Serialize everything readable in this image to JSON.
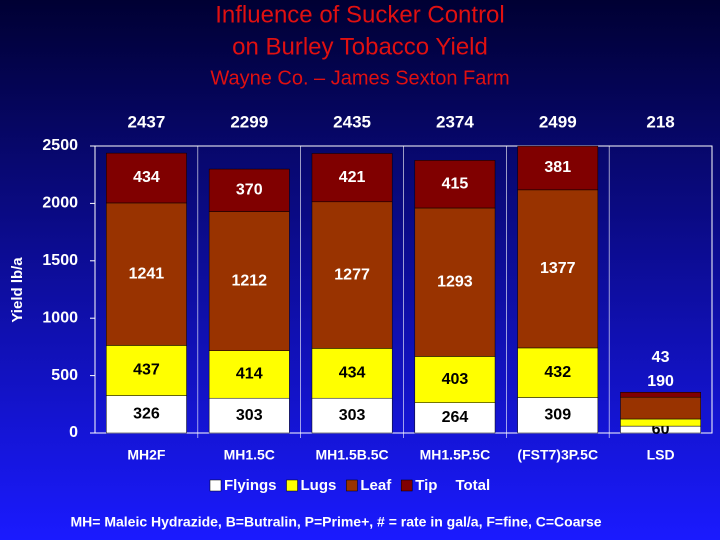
{
  "chart_data": {
    "type": "stacked-bar",
    "title": "Influence of Sucker Control",
    "title_line2": "on Burley Tobacco Yield",
    "subtitle": "Wayne Co. – James Sexton Farm",
    "y_label": "Yield lb/a",
    "footnote": "MH= Maleic Hydrazide, B=Butralin, P=Prime+, # = rate in gal/a, F=fine, C=Coarse",
    "categories": [
      "MH2F",
      "MH1.5C",
      "MH1.5B.5C",
      "MH1.5P.5C",
      "(FST7)3P.5C",
      "LSD"
    ],
    "series": [
      {
        "name": "Flyings",
        "color": "#ffffff",
        "values": [
          326,
          303,
          303,
          264,
          309,
          60
        ]
      },
      {
        "name": "Lugs",
        "color": "#ffff00",
        "values": [
          437,
          414,
          434,
          403,
          432,
          62
        ]
      },
      {
        "name": "Leaf",
        "color": "#993300",
        "values": [
          1241,
          1212,
          1277,
          1293,
          1377,
          190
        ]
      },
      {
        "name": "Tip",
        "color": "#800000",
        "values": [
          434,
          370,
          421,
          415,
          381,
          43
        ]
      }
    ],
    "totals": {
      "name": "Total",
      "values": [
        2437,
        2299,
        2435,
        2374,
        2499,
        218
      ]
    },
    "ylim": [
      0,
      2500
    ],
    "yticks": [
      0,
      500,
      1000,
      1500,
      2000,
      2500
    ]
  }
}
